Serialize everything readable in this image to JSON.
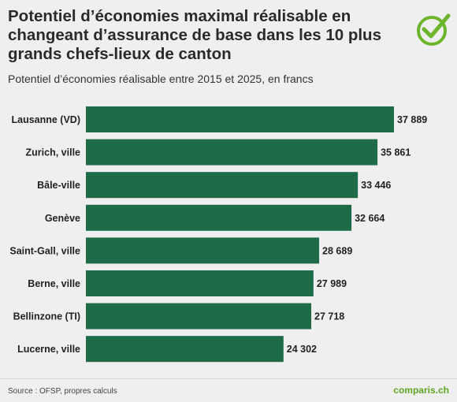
{
  "header": {
    "title": "Potentiel d’économies maximal réalisable en changeant d’assurance de base dans les 10 plus grands chefs-lieux de canton",
    "subtitle": "Potentiel d’économies réalisable entre 2015 et 2025, en francs"
  },
  "footer": {
    "source": "Source : OFSP, propres calculs",
    "brand": "comparis.ch"
  },
  "logo": {
    "icon": "checkmark-circle-icon",
    "color": "#6cb52d"
  },
  "colors": {
    "bar": "#1d6b48",
    "background": "#efefef"
  },
  "chart_data": {
    "type": "bar",
    "orientation": "horizontal",
    "title": "Potentiel d’économies maximal réalisable en changeant d’assurance de base dans les 10 plus grands chefs-lieux de canton",
    "subtitle": "Potentiel d’économies réalisable entre 2015 et 2025, en francs",
    "categories": [
      "Lausanne (VD)",
      "Zurich, ville",
      "Bâle-ville",
      "Genève",
      "Saint-Gall, ville",
      "Berne, ville",
      "Bellinzone (TI)",
      "Lucerne, ville"
    ],
    "values": [
      37889,
      35861,
      33446,
      32664,
      28689,
      27989,
      27718,
      24302
    ],
    "value_labels": [
      "37 889",
      "35 861",
      "33 446",
      "32 664",
      "28 689",
      "27 989",
      "27 718",
      "24 302"
    ],
    "xlabel": "",
    "ylabel": "",
    "grid": false,
    "legend": "none"
  }
}
